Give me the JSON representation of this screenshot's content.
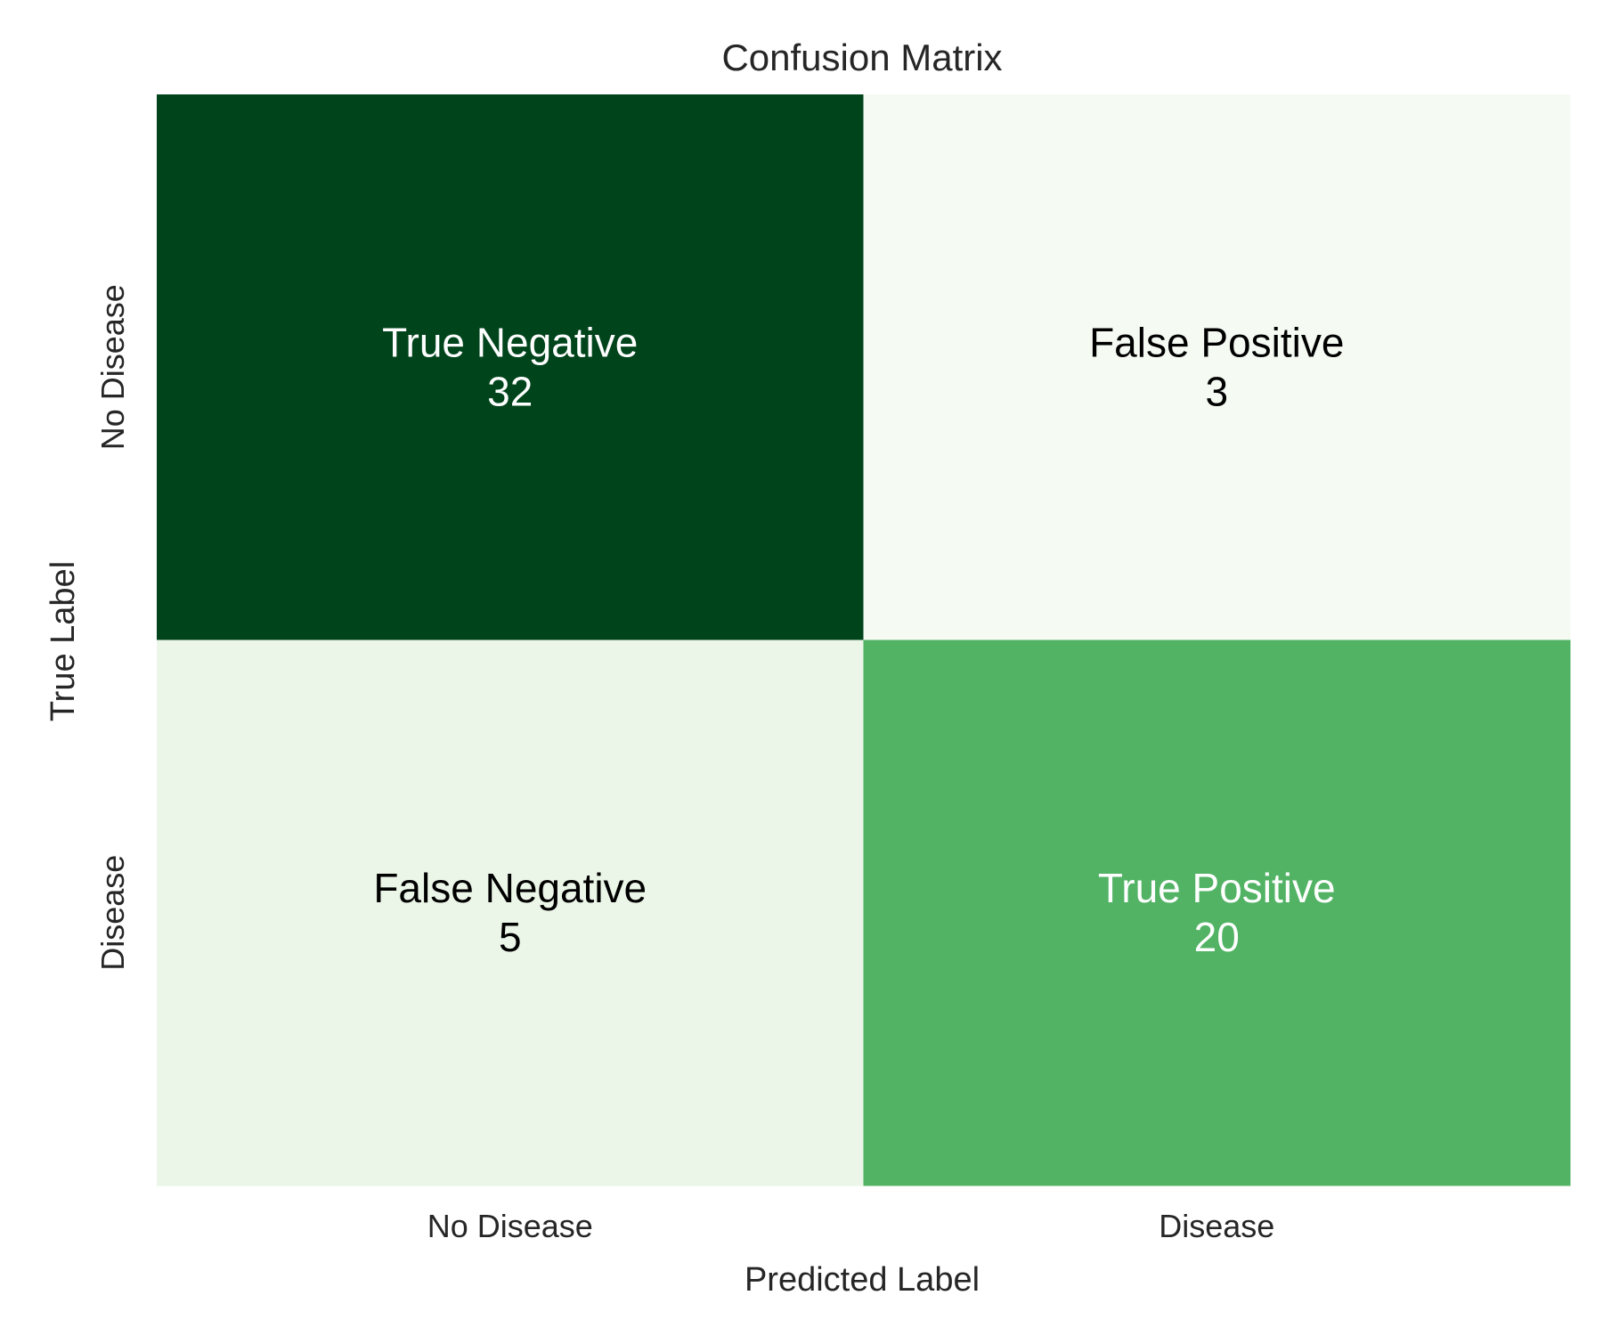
{
  "chart_data": {
    "type": "heatmap",
    "title": "Confusion Matrix",
    "xlabel": "Predicted Label",
    "ylabel": "True Label",
    "x_categories": [
      "No Disease",
      "Disease"
    ],
    "y_categories": [
      "No Disease",
      "Disease"
    ],
    "values": [
      [
        32,
        3
      ],
      [
        5,
        20
      ]
    ],
    "cell_labels": [
      [
        "True Negative",
        "False Positive"
      ],
      [
        "False Negative",
        "True Positive"
      ]
    ],
    "colormap": "Greens",
    "cell_colors": [
      [
        "#00441b",
        "#f5fbf3"
      ],
      [
        "#ebf6e8",
        "#52b365"
      ]
    ],
    "cell_text_colors": [
      [
        "#ffffff",
        "#000000"
      ],
      [
        "#000000",
        "#ffffff"
      ]
    ],
    "colorbar": false,
    "grid": false
  }
}
